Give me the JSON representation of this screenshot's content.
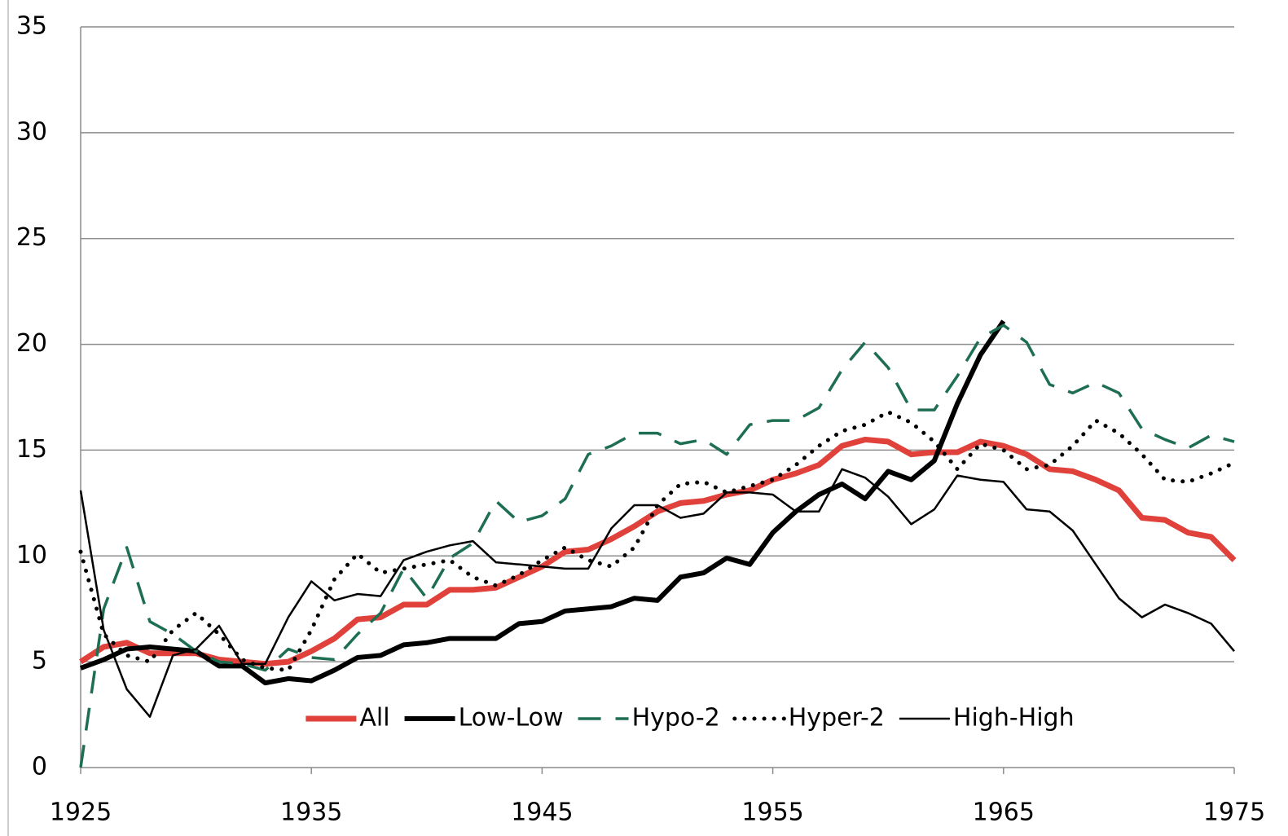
{
  "chart_data": {
    "type": "line",
    "x": [
      1925,
      1926,
      1927,
      1928,
      1929,
      1930,
      1931,
      1932,
      1933,
      1934,
      1935,
      1936,
      1937,
      1938,
      1939,
      1940,
      1941,
      1942,
      1943,
      1944,
      1945,
      1946,
      1947,
      1948,
      1949,
      1950,
      1951,
      1952,
      1953,
      1954,
      1955,
      1956,
      1957,
      1958,
      1959,
      1960,
      1961,
      1962,
      1963,
      1964,
      1965,
      1966,
      1967,
      1968,
      1969,
      1970,
      1971,
      1972,
      1973,
      1974,
      1975
    ],
    "xlim": [
      1925,
      1975
    ],
    "xticks": [
      1925,
      1935,
      1945,
      1955,
      1965,
      1975
    ],
    "ylim": [
      0,
      35
    ],
    "yticks": [
      0,
      5,
      10,
      15,
      20,
      25,
      30,
      35
    ],
    "grid": true,
    "legend": "bottom",
    "series": [
      {
        "name": "All",
        "color": "#e0413b",
        "width": 7,
        "style": "solid",
        "values": [
          5.0,
          5.7,
          5.9,
          5.4,
          5.4,
          5.4,
          5.1,
          5.0,
          4.9,
          5.0,
          5.5,
          6.1,
          7.0,
          7.1,
          7.7,
          7.7,
          8.4,
          8.4,
          8.5,
          9.0,
          9.5,
          10.2,
          10.3,
          10.8,
          11.4,
          12.1,
          12.5,
          12.6,
          12.9,
          13.1,
          13.6,
          13.9,
          14.3,
          15.2,
          15.5,
          15.4,
          14.8,
          14.9,
          14.9,
          15.4,
          15.2,
          14.8,
          14.1,
          14.0,
          13.6,
          13.1,
          11.8,
          11.7,
          11.1,
          10.9,
          9.8
        ]
      },
      {
        "name": "Low-Low",
        "color": "#000000",
        "width": 6,
        "style": "solid",
        "values": [
          4.7,
          5.1,
          5.6,
          5.7,
          5.6,
          5.5,
          4.8,
          4.8,
          4.0,
          4.2,
          4.1,
          4.6,
          5.2,
          5.3,
          5.8,
          5.9,
          6.1,
          6.1,
          6.1,
          6.8,
          6.9,
          7.4,
          7.5,
          7.6,
          8.0,
          7.9,
          9.0,
          9.2,
          9.9,
          9.6,
          11.1,
          12.1,
          12.9,
          13.4,
          12.7,
          14.0,
          13.6,
          14.5,
          17.2,
          19.5,
          21.1,
          null,
          null,
          null,
          null,
          null,
          null,
          null,
          null,
          null,
          null
        ]
      },
      {
        "name": "Hypo-2",
        "color": "#1e6e52",
        "width": 3.5,
        "style": "dashed",
        "values": [
          0,
          7.5,
          10.4,
          6.9,
          6.3,
          5.5,
          5.0,
          4.9,
          4.6,
          5.6,
          5.2,
          5.1,
          6.3,
          7.3,
          9.4,
          8.0,
          9.9,
          10.6,
          12.6,
          11.6,
          11.9,
          12.7,
          14.8,
          15.2,
          15.8,
          15.8,
          15.3,
          15.5,
          14.8,
          16.2,
          16.4,
          16.4,
          17.0,
          18.8,
          20.1,
          18.9,
          16.9,
          16.9,
          18.5,
          20.3,
          20.9,
          20.1,
          18.1,
          17.7,
          18.2,
          17.7,
          16.0,
          15.5,
          15.1,
          15.7,
          15.4
        ]
      },
      {
        "name": "Hyper-2",
        "color": "#000000",
        "width": 5,
        "style": "dotted",
        "values": [
          10.2,
          6.3,
          5.3,
          5.0,
          6.5,
          7.3,
          6.3,
          5.1,
          4.7,
          4.6,
          6.5,
          8.9,
          10.1,
          9.2,
          9.4,
          9.6,
          9.8,
          9.0,
          8.6,
          9.1,
          9.8,
          10.4,
          9.8,
          9.5,
          10.4,
          12.4,
          13.4,
          13.5,
          13.0,
          13.3,
          13.6,
          14.3,
          15.2,
          15.9,
          16.2,
          16.8,
          16.3,
          15.4,
          14.1,
          15.3,
          15.0,
          14.1,
          14.3,
          15.2,
          16.4,
          15.8,
          14.8,
          13.6,
          13.5,
          13.9,
          14.4
        ]
      },
      {
        "name": "High-High",
        "color": "#000000",
        "width": 2.5,
        "style": "solid",
        "values": [
          13.1,
          6.5,
          3.7,
          2.4,
          5.3,
          5.6,
          6.7,
          4.9,
          4.9,
          7.1,
          8.8,
          7.9,
          8.2,
          8.1,
          9.8,
          10.2,
          10.5,
          10.7,
          9.7,
          9.6,
          9.5,
          9.4,
          9.4,
          11.3,
          12.4,
          12.4,
          11.8,
          12.0,
          13.0,
          13.0,
          12.9,
          12.1,
          12.1,
          14.1,
          13.7,
          12.8,
          11.5,
          12.2,
          13.8,
          13.6,
          13.5,
          12.2,
          12.1,
          11.2,
          9.6,
          8.0,
          7.1,
          7.7,
          7.3,
          6.8,
          5.5
        ]
      }
    ]
  }
}
